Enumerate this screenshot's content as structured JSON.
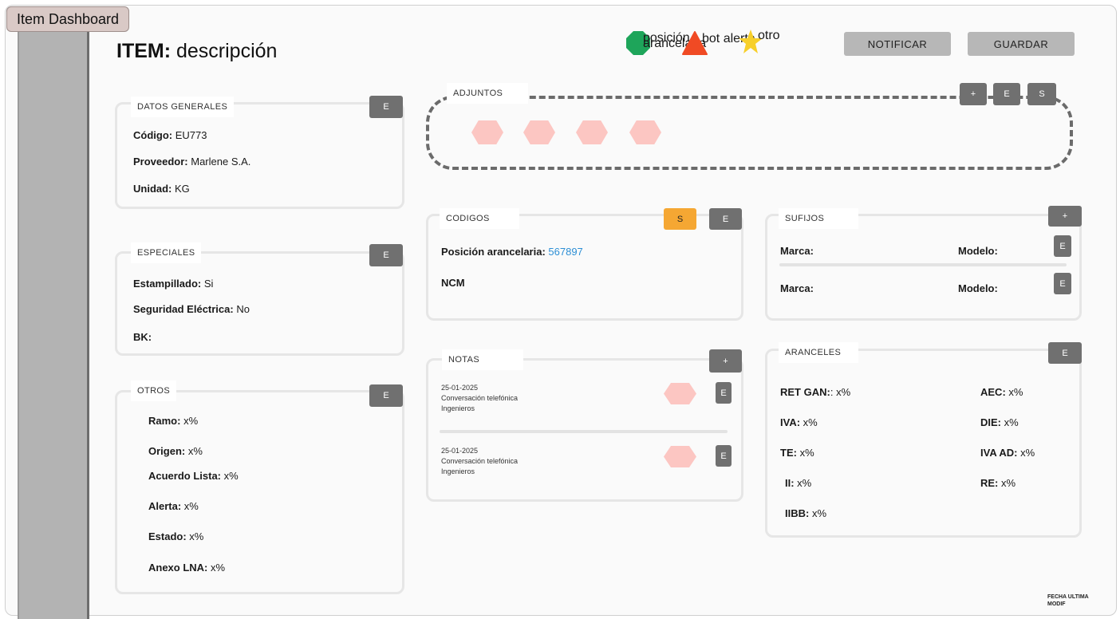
{
  "window": {
    "tab_label": "Item Dashboard"
  },
  "header": {
    "title_bold": "ITEM:",
    "title_rest": " descripción",
    "legend": [
      {
        "icon": "octagon-icon",
        "color": "#1ea55a",
        "label": "posición arancelaria"
      },
      {
        "icon": "triangle-icon",
        "color": "#f04a24",
        "label": "bot alerta"
      },
      {
        "icon": "star-icon",
        "color": "#f7cf2a",
        "label": "otro"
      }
    ],
    "notify_label": "NOTIFICAR",
    "save_label": "GUARDAR"
  },
  "datos_generales": {
    "title": "DATOS GENERALES",
    "edit_label": "E",
    "fields": [
      {
        "label": "Código:",
        "value": " EU773"
      },
      {
        "label": "Proveedor:",
        "value": " Marlene S.A."
      },
      {
        "label": "Unidad:",
        "value": " KG"
      }
    ]
  },
  "especiales": {
    "title": "ESPECIALES",
    "edit_label": "E",
    "fields": [
      {
        "label": "Estampillado:",
        "value": " Si"
      },
      {
        "label": "Seguridad Eléctrica:",
        "value": " No"
      },
      {
        "label": "BK:",
        "value": ""
      }
    ]
  },
  "otros": {
    "title": "OTROS",
    "edit_label": "E",
    "fields": [
      {
        "label": "Ramo:",
        "value": " x%"
      },
      {
        "label": "Origen:",
        "value": " x%"
      },
      {
        "label": "Acuerdo Lista:",
        "value": " x%"
      },
      {
        "label": "Alerta:",
        "value": " x%"
      },
      {
        "label": "Estado:",
        "value": " x%"
      },
      {
        "label": "Anexo LNA:",
        "value": " x%"
      }
    ]
  },
  "adjuntos": {
    "title": "ADJUNTOS",
    "add_label": "+",
    "edit_label": "E",
    "s_label": "S"
  },
  "codigos": {
    "title": "CODIGOS",
    "s_label": "S",
    "edit_label": "E",
    "posicion_label": "Posición arancelaria:",
    "posicion_value": "567897",
    "ncm_label": "NCM"
  },
  "sufijos": {
    "title": "SUFIJOS",
    "add_label": "+",
    "rows": [
      {
        "marca": "Marca:",
        "modelo": "Modelo:",
        "edit_label": "E"
      },
      {
        "marca": "Marca:",
        "modelo": "Modelo:",
        "edit_label": "E"
      }
    ]
  },
  "notas": {
    "title": "NOTAS",
    "add_label": "+",
    "items": [
      {
        "date": "25-01-2025",
        "line1": "Conversación telefónica",
        "line2": "Ingenieros",
        "edit_label": "E"
      },
      {
        "date": "25-01-2025",
        "line1": "Conversación telefónica",
        "line2": "Ingenieros",
        "edit_label": "E"
      }
    ]
  },
  "aranceles": {
    "title": "ARANCELES",
    "edit_label": "E",
    "left": [
      {
        "label": "RET GAN:",
        "value": ": x%"
      },
      {
        "label": "IVA:",
        "value": " x%"
      },
      {
        "label": "TE:",
        "value": " x%"
      },
      {
        "label": "II:",
        "value": " x%"
      },
      {
        "label": "IIBB:",
        "value": " x%"
      }
    ],
    "right": [
      {
        "label": "AEC:",
        "value": " x%"
      },
      {
        "label": "DIE:",
        "value": " x%"
      },
      {
        "label": "IVA AD:",
        "value": " x%"
      },
      {
        "label": "RE:",
        "value": " x%"
      }
    ]
  },
  "footer": {
    "line1": "FECHA ULTIMA",
    "line2": "MODIF"
  }
}
